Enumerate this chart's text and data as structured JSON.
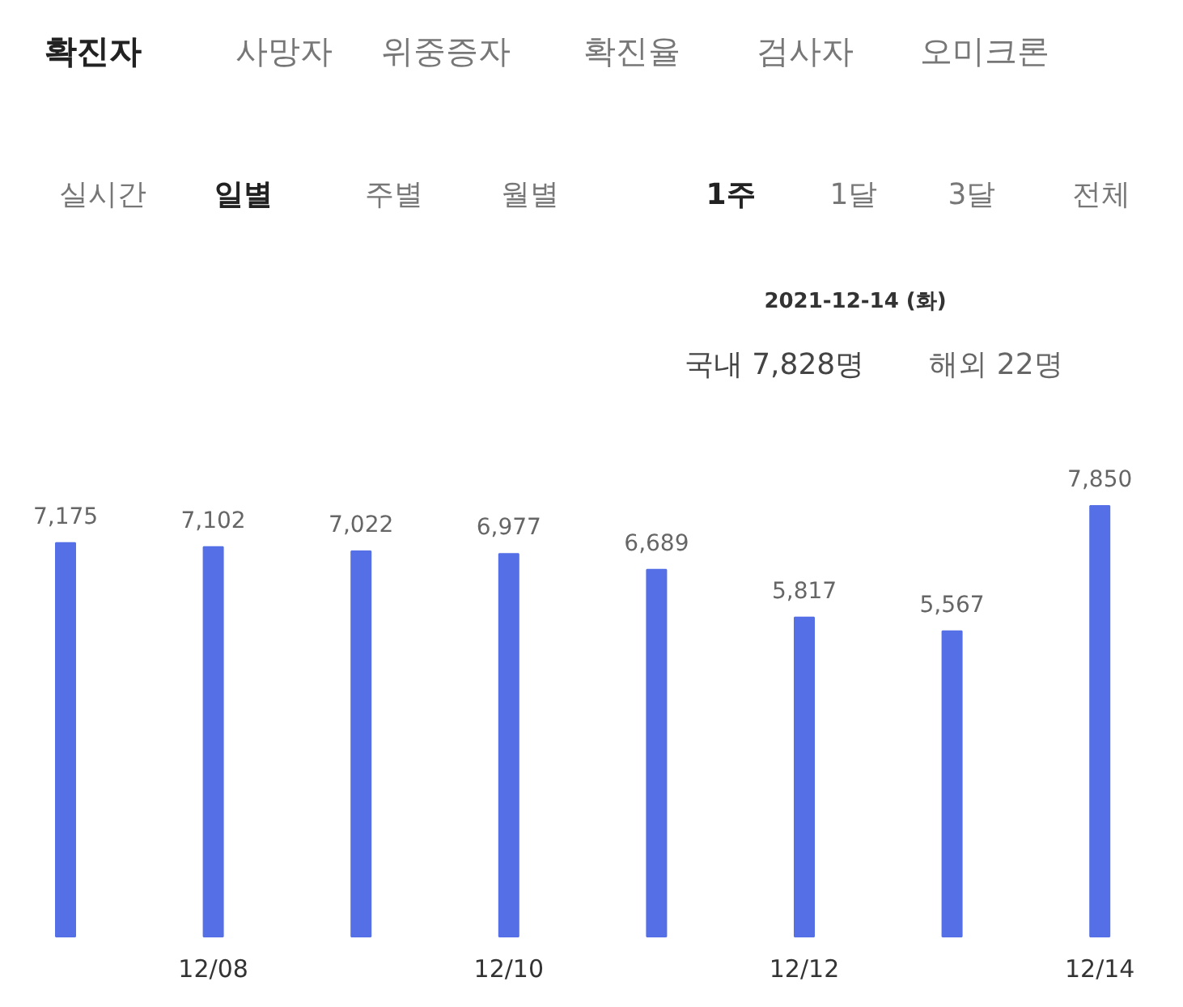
{
  "chart_data": {
    "type": "bar",
    "categories": [
      null,
      "12/08",
      null,
      "12/10",
      null,
      "12/12",
      null,
      "12/14"
    ],
    "values": [
      7175,
      7102,
      7022,
      6977,
      6689,
      5817,
      5567,
      7850
    ],
    "color": "#5570e6",
    "data_labels": true,
    "value_labels": [
      "7,175",
      "7,102",
      "7,022",
      "6,977",
      "6,689",
      "5,817",
      "5,567",
      "7,850"
    ],
    "annotations": [
      "확진자",
      "사망자",
      "위중증자",
      "확진율",
      "검사자",
      "오미크론",
      "실시간",
      "일별",
      "주별",
      "월별",
      "1주",
      "1달",
      "3달",
      "전체",
      "2021-12-14 (화)",
      "국내 7,828명",
      "해외 22명"
    ]
  }
}
